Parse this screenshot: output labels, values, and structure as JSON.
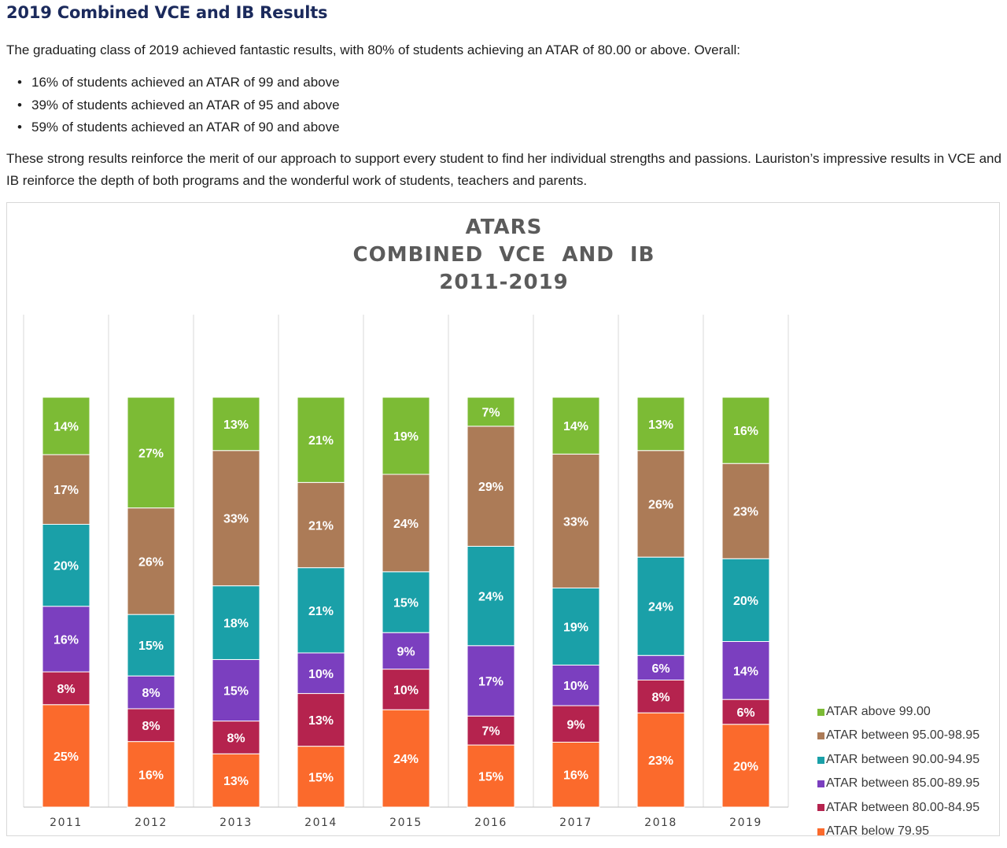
{
  "page": {
    "heading": "2019 Combined VCE and IB Results",
    "intro": "The graduating class of 2019 achieved fantastic results, with 80% of students achieving an ATAR of 80.00 or above. Overall:",
    "bullets": [
      "16% of students achieved an ATAR of 99 and above",
      "39% of students achieved an ATAR of 95 and above",
      "59% of students achieved an ATAR of 90 and above"
    ],
    "closing": "These strong results reinforce the merit of our approach to support every student to find her individual strengths and passions. Lauriston’s impressive results in VCE and IB reinforce the depth of both programs and the wonderful work of students, teachers and parents."
  },
  "chart_data": {
    "type": "bar",
    "stacked": true,
    "title_lines": [
      "ATARS",
      "COMBINED  VCE  AND  IB",
      "2011-2019"
    ],
    "categories": [
      "2011",
      "2012",
      "2013",
      "2014",
      "2015",
      "2016",
      "2017",
      "2018",
      "2019"
    ],
    "ylim": [
      0,
      100
    ],
    "grid": "vertical",
    "legend_position": "right",
    "series": [
      {
        "name": "ATAR below 79.95",
        "color": "#fb6a2c",
        "values": [
          25,
          16,
          13,
          15,
          24,
          15,
          16,
          23,
          20
        ]
      },
      {
        "name": "ATAR between 80.00-84.95",
        "color": "#b5234e",
        "values": [
          8,
          8,
          8,
          13,
          10,
          7,
          9,
          8,
          6
        ]
      },
      {
        "name": "ATAR between 85.00-89.95",
        "color": "#7b3fbf",
        "values": [
          16,
          8,
          15,
          10,
          9,
          17,
          10,
          6,
          14
        ]
      },
      {
        "name": "ATAR between 90.00-94.95",
        "color": "#1aa0a8",
        "values": [
          20,
          15,
          18,
          21,
          15,
          24,
          19,
          24,
          20
        ]
      },
      {
        "name": "ATAR between 95.00-98.95",
        "color": "#ac7b57",
        "values": [
          17,
          26,
          33,
          21,
          24,
          29,
          33,
          26,
          23
        ]
      },
      {
        "name": "ATAR above 99.00",
        "color": "#7cbb35",
        "values": [
          14,
          27,
          13,
          21,
          19,
          7,
          14,
          13,
          16
        ]
      }
    ]
  }
}
